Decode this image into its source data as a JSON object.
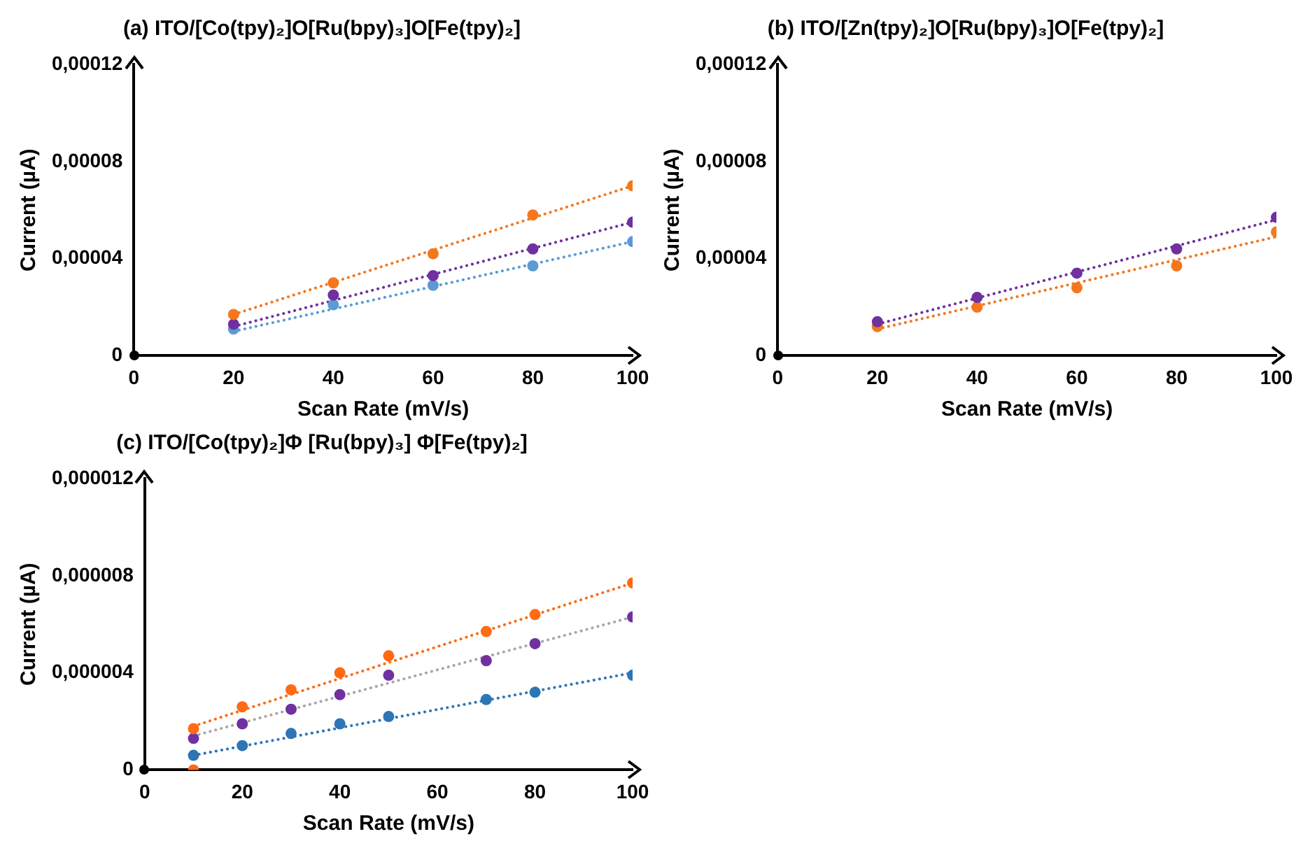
{
  "chart_data": [
    {
      "type": "scatter",
      "title": "(a) ITO/[Co(tpy)₂]O[Ru(bpy)₃]O[Fe(tpy)₂]",
      "xlabel": "Scan Rate (mV/s)",
      "ylabel": "Current (µA)",
      "xlim": [
        0,
        100
      ],
      "xticks": [
        0,
        20,
        40,
        60,
        80,
        100
      ],
      "ylim": [
        0,
        0.00012
      ],
      "yticks": [
        {
          "value": 0,
          "label": "0"
        },
        {
          "value": 4e-05,
          "label": "0,00004"
        },
        {
          "value": 8e-05,
          "label": "0,00008"
        },
        {
          "value": 0.00012,
          "label": "0,00012"
        }
      ],
      "grid": false,
      "legend": false,
      "marker": "circle",
      "series": [
        {
          "type": "scatter",
          "color": "#f4771e",
          "x": [
            20,
            40,
            60,
            80,
            100
          ],
          "values": [
            1.7e-05,
            3e-05,
            4.2e-05,
            5.8e-05,
            7e-05
          ]
        },
        {
          "type": "scatter",
          "color": "#7030a0",
          "x": [
            20,
            40,
            60,
            80,
            100
          ],
          "values": [
            1.3e-05,
            2.5e-05,
            3.3e-05,
            4.4e-05,
            5.5e-05
          ]
        },
        {
          "type": "scatter",
          "color": "#5b9bd5",
          "x": [
            20,
            40,
            60,
            80,
            100
          ],
          "values": [
            1.1e-05,
            2.1e-05,
            2.9e-05,
            3.7e-05,
            4.7e-05
          ]
        },
        {
          "type": "line",
          "color": "#f4771e",
          "line_style": "dotted",
          "marker": "none",
          "x": [
            20,
            100
          ],
          "values": [
            1.7e-05,
            7e-05
          ]
        },
        {
          "type": "line",
          "color": "#7030a0",
          "line_style": "dotted",
          "marker": "none",
          "x": [
            20,
            100
          ],
          "values": [
            1.2e-05,
            5.5e-05
          ]
        },
        {
          "type": "line",
          "color": "#5b9bd5",
          "line_style": "dotted",
          "marker": "none",
          "x": [
            20,
            100
          ],
          "values": [
            1e-05,
            4.7e-05
          ]
        }
      ]
    },
    {
      "type": "scatter",
      "title": "(b) ITO/[Zn(tpy)₂]O[Ru(bpy)₃]O[Fe(tpy)₂]",
      "xlabel": "Scan Rate (mV/s)",
      "ylabel": "Current (µA)",
      "xlim": [
        0,
        100
      ],
      "xticks": [
        0,
        20,
        40,
        60,
        80,
        100
      ],
      "ylim": [
        0,
        0.00012
      ],
      "yticks": [
        {
          "value": 0,
          "label": "0"
        },
        {
          "value": 4e-05,
          "label": "0,00004"
        },
        {
          "value": 8e-05,
          "label": "0,00008"
        },
        {
          "value": 0.00012,
          "label": "0,00012"
        }
      ],
      "grid": false,
      "legend": false,
      "marker": "circle",
      "series": [
        {
          "type": "scatter",
          "color": "#7030a0",
          "x": [
            20,
            40,
            60,
            80,
            100
          ],
          "values": [
            1.4e-05,
            2.4e-05,
            3.4e-05,
            4.4e-05,
            5.7e-05
          ]
        },
        {
          "type": "scatter",
          "color": "#f4771e",
          "x": [
            20,
            40,
            60,
            80,
            100
          ],
          "values": [
            1.2e-05,
            2e-05,
            2.8e-05,
            3.7e-05,
            5.1e-05
          ]
        },
        {
          "type": "line",
          "color": "#7030a0",
          "line_style": "dotted",
          "marker": "none",
          "x": [
            20,
            100
          ],
          "values": [
            1.3e-05,
            5.6e-05
          ]
        },
        {
          "type": "line",
          "color": "#f4771e",
          "line_style": "dotted",
          "marker": "none",
          "x": [
            20,
            100
          ],
          "values": [
            1.1e-05,
            4.9e-05
          ]
        }
      ]
    },
    {
      "type": "scatter",
      "title": "(c) ITO/[Co(tpy)₂]Φ [Ru(bpy)₃] Φ[Fe(tpy)₂]",
      "xlabel": "Scan Rate (mV/s)",
      "ylabel": "Current (µA)",
      "xlim": [
        0,
        100
      ],
      "xticks": [
        0,
        20,
        40,
        60,
        80,
        100
      ],
      "ylim": [
        0,
        1.2e-05
      ],
      "yticks": [
        {
          "value": 0,
          "label": "0"
        },
        {
          "value": 4e-06,
          "label": "0,000004"
        },
        {
          "value": 8e-06,
          "label": "0,000008"
        },
        {
          "value": 1.2e-05,
          "label": "0,000012"
        }
      ],
      "grid": false,
      "legend": false,
      "marker": "circle",
      "series": [
        {
          "type": "scatter",
          "color": "#ff6a13",
          "x": [
            10,
            10,
            20,
            30,
            40,
            50,
            70,
            80,
            100
          ],
          "values": [
            0,
            1.7e-06,
            2.6e-06,
            3.3e-06,
            4e-06,
            4.7e-06,
            5.7e-06,
            6.4e-06,
            7.7e-06
          ]
        },
        {
          "type": "scatter",
          "color": "#7030a0",
          "x": [
            10,
            20,
            30,
            40,
            50,
            70,
            80,
            100
          ],
          "values": [
            1.3e-06,
            1.9e-06,
            2.5e-06,
            3.1e-06,
            3.9e-06,
            4.5e-06,
            5.2e-06,
            6.3e-06
          ]
        },
        {
          "type": "scatter",
          "color": "#2e75b6",
          "x": [
            10,
            20,
            30,
            40,
            50,
            70,
            80,
            100
          ],
          "values": [
            6e-07,
            1e-06,
            1.5e-06,
            1.9e-06,
            2.2e-06,
            2.9e-06,
            3.2e-06,
            3.9e-06
          ]
        },
        {
          "type": "line",
          "color": "#ff6a13",
          "line_style": "dotted",
          "marker": "none",
          "x": [
            10,
            100
          ],
          "values": [
            1.8e-06,
            7.7e-06
          ]
        },
        {
          "type": "line",
          "color": "#a6a6a6",
          "line_style": "dotted",
          "marker": "none",
          "x": [
            10,
            100
          ],
          "values": [
            1.4e-06,
            6.3e-06
          ]
        },
        {
          "type": "line",
          "color": "#2e75b6",
          "line_style": "dotted",
          "marker": "none",
          "x": [
            10,
            100
          ],
          "values": [
            6e-07,
            4e-06
          ]
        }
      ]
    }
  ]
}
